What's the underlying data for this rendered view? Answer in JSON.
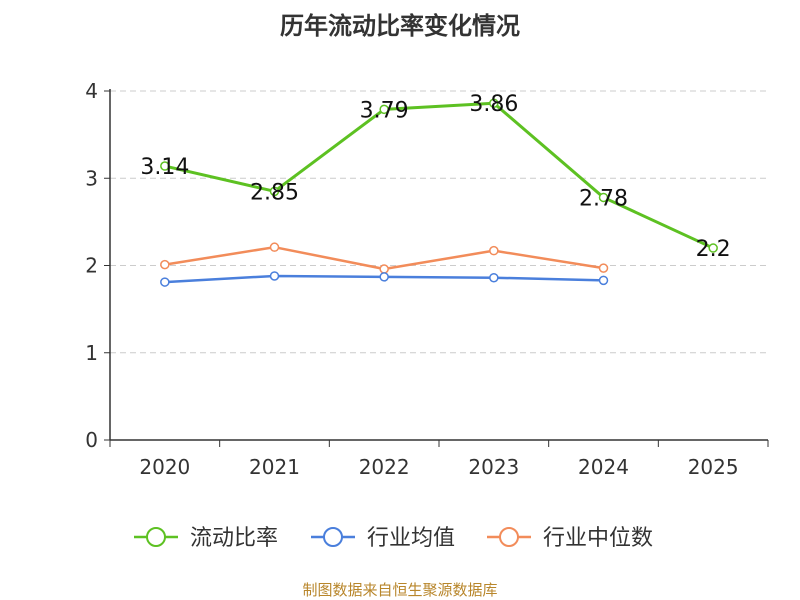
{
  "chart_data": {
    "type": "line",
    "title": "历年流动比率变化情况",
    "categories": [
      "2020",
      "2021",
      "2022",
      "2023",
      "2024",
      "2025"
    ],
    "ylim": [
      0,
      4
    ],
    "yticks": [
      "0",
      "1",
      "2",
      "3",
      "4"
    ],
    "grid": true,
    "legend_position": "bottom",
    "series": [
      {
        "name": "流动比率",
        "color": "#5dc122",
        "values": [
          3.14,
          2.85,
          3.79,
          3.86,
          2.78,
          2.2
        ],
        "labels": [
          "3.14",
          "2.85",
          "3.79",
          "3.86",
          "2.78",
          "2.2"
        ]
      },
      {
        "name": "行业均值",
        "color": "#4a7fdc",
        "values": [
          1.81,
          1.88,
          1.87,
          1.86,
          1.83,
          null
        ]
      },
      {
        "name": "行业中位数",
        "color": "#f28c5a",
        "values": [
          2.01,
          2.21,
          1.96,
          2.17,
          1.97,
          null
        ]
      }
    ]
  },
  "source": "制图数据来自恒生聚源数据库"
}
